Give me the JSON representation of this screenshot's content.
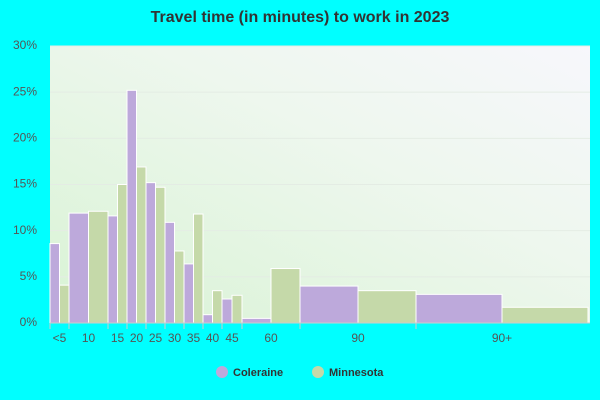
{
  "chart_data": {
    "type": "bar",
    "title": "Travel time (in minutes) to work in 2023",
    "categories": [
      "<5",
      "10",
      "15",
      "20",
      "25",
      "30",
      "35",
      "40",
      "45",
      "60",
      "90",
      "90+"
    ],
    "series": [
      {
        "name": "Coleraine",
        "color": "#bda9db",
        "values": [
          8.6,
          11.9,
          11.6,
          25.2,
          15.2,
          10.9,
          6.4,
          0.9,
          2.6,
          0.5,
          4.0,
          3.1
        ]
      },
      {
        "name": "Minnesota",
        "color": "#c5d9a9",
        "values": [
          4.1,
          12.1,
          15.0,
          16.9,
          14.7,
          7.8,
          11.8,
          3.5,
          3.0,
          5.9,
          3.5,
          1.7
        ]
      }
    ],
    "ylim": [
      0,
      30
    ],
    "yticks": [
      {
        "value": 0,
        "label": "0%"
      },
      {
        "value": 5,
        "label": "5%"
      },
      {
        "value": 10,
        "label": "10%"
      },
      {
        "value": 15,
        "label": "15%"
      },
      {
        "value": 20,
        "label": "20%"
      },
      {
        "value": 25,
        "label": "25%"
      },
      {
        "value": 30,
        "label": "30%"
      }
    ],
    "grid": true,
    "legend": "bottom"
  }
}
